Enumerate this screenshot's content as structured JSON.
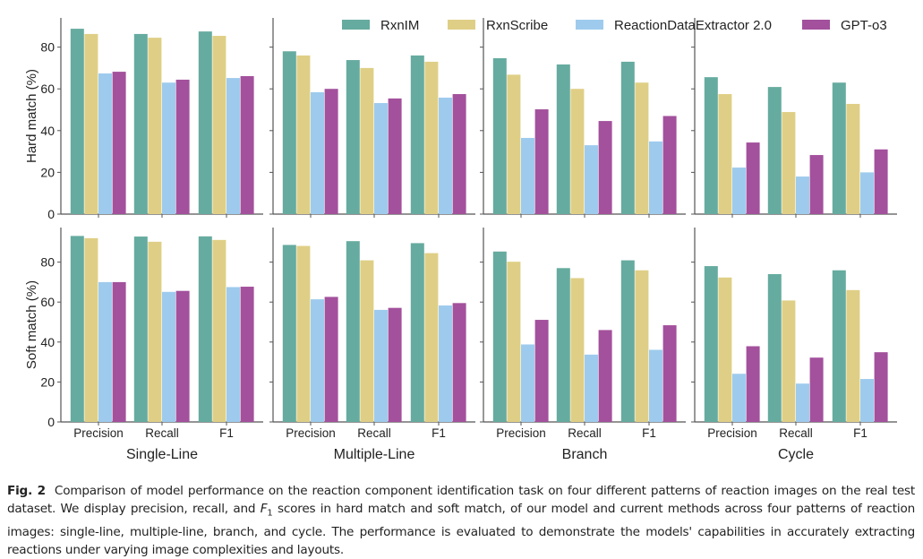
{
  "chart_data": {
    "type": "bar",
    "legend_position": "top",
    "categories": [
      "Precision",
      "Recall",
      "F1"
    ],
    "series_names": [
      "RxnIM",
      "RxnScribe",
      "ReactionDataExtractor 2.0",
      "GPT-o3"
    ],
    "colors": [
      "#66ab9f",
      "#dfcf86",
      "#9ecbed",
      "#a3519c"
    ],
    "ylim": [
      0,
      95
    ],
    "yticks": [
      0,
      20,
      40,
      60,
      80
    ],
    "rows": [
      {
        "ylabel": "Hard match (%)",
        "panels": [
          {
            "title": "Single-Line",
            "series": [
              [
                88.8,
                86.3,
                87.5
              ],
              [
                86.3,
                84.5,
                85.4
              ],
              [
                67.4,
                63.0,
                65.2
              ],
              [
                68.2,
                64.4,
                66.1
              ]
            ]
          },
          {
            "title": "Multiple-Line",
            "series": [
              [
                78.0,
                73.8,
                76.0
              ],
              [
                76.0,
                70.0,
                73.0
              ],
              [
                58.4,
                53.2,
                55.8
              ],
              [
                60.0,
                55.4,
                57.5
              ]
            ]
          },
          {
            "title": "Branch",
            "series": [
              [
                74.7,
                71.7,
                73.0
              ],
              [
                66.8,
                60.0,
                63.0
              ],
              [
                36.5,
                33.0,
                34.8
              ],
              [
                50.2,
                44.6,
                47.0
              ]
            ]
          },
          {
            "title": "Cycle",
            "series": [
              [
                65.6,
                60.9,
                63.0
              ],
              [
                57.5,
                48.9,
                52.8
              ],
              [
                22.3,
                18.0,
                20.0
              ],
              [
                34.3,
                28.3,
                31.0
              ]
            ]
          }
        ]
      },
      {
        "ylabel": "Soft match (%)",
        "panels": [
          {
            "title": "Single-Line",
            "series": [
              [
                93.1,
                92.8,
                92.9
              ],
              [
                92.0,
                90.2,
                91.1
              ],
              [
                70.0,
                65.1,
                67.5
              ],
              [
                70.0,
                65.6,
                67.7
              ]
            ]
          },
          {
            "title": "Multiple-Line",
            "series": [
              [
                88.6,
                90.5,
                89.5
              ],
              [
                88.1,
                80.9,
                84.5
              ],
              [
                61.4,
                56.1,
                58.3
              ],
              [
                62.6,
                57.1,
                59.5
              ]
            ]
          },
          {
            "title": "Branch",
            "series": [
              [
                85.3,
                77.0,
                80.9
              ],
              [
                80.2,
                72.0,
                75.9
              ],
              [
                38.8,
                33.7,
                36.1
              ],
              [
                51.1,
                46.0,
                48.4
              ]
            ]
          },
          {
            "title": "Cycle",
            "series": [
              [
                78.0,
                74.0,
                75.9
              ],
              [
                72.3,
                60.8,
                66.0
              ],
              [
                24.1,
                19.2,
                21.5
              ],
              [
                37.9,
                32.2,
                34.9
              ]
            ]
          }
        ]
      }
    ]
  },
  "caption": {
    "label": "Fig. 2",
    "text_before_f": "Comparison of model performance on the reaction component identification task on four different patterns of reaction images on the real test dataset. We display precision, recall, and ",
    "f_symbol": "F",
    "f_subscript": "1",
    "text_after_f": " scores in hard match and soft match, of our model and current methods across four patterns of reaction images: single-line, multiple-line, branch, and cycle. The performance is evaluated to demonstrate the models' capabilities in accurately extracting reactions under varying image complexities and layouts."
  }
}
